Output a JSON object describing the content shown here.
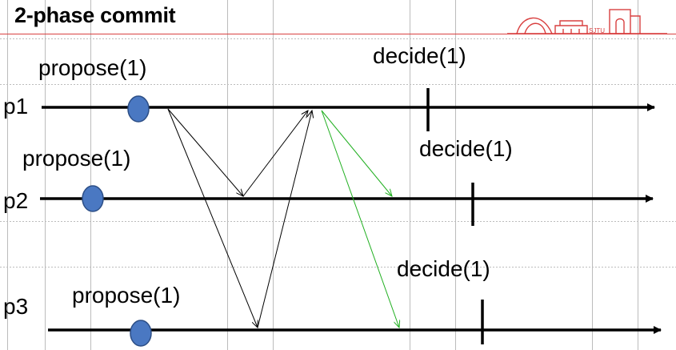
{
  "title": "2-phase commit",
  "processes": [
    {
      "name": "p1",
      "propose": "propose(1)",
      "decide": "decide(1)"
    },
    {
      "name": "p2",
      "propose": "propose(1)",
      "decide": "decide(1)"
    },
    {
      "name": "p3",
      "propose": "propose(1)",
      "decide": "decide(1)"
    }
  ],
  "logo_text": "SJTU",
  "colors": {
    "timeline": "#000000",
    "propose_dot": "#4a78c2",
    "propose_dot_outline": "#2c4e86",
    "vote_messages": "#000000",
    "decide_messages": "#22b022",
    "title_rule": "#d94040",
    "logo": "#d94040"
  }
}
